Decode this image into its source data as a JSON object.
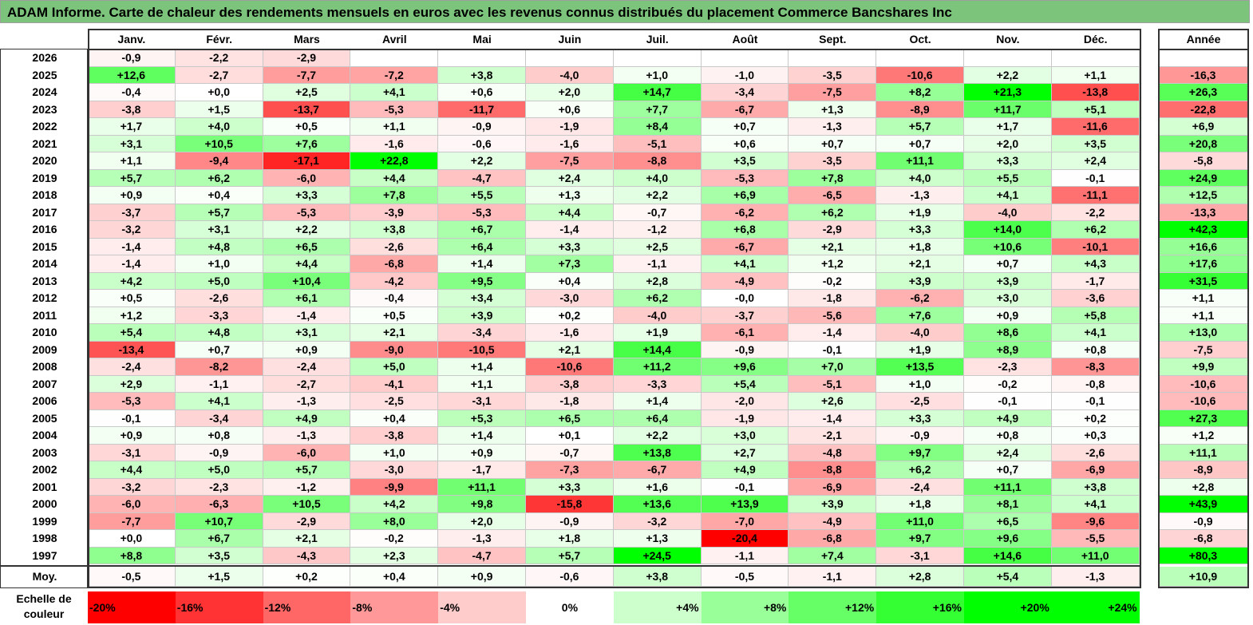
{
  "title": "ADAM Informe. Carte de chaleur des rendements mensuels en euros avec les revenus connus distribués du placement Commerce Bancshares Inc",
  "year_header": "Année",
  "avg_label": "Moy.",
  "scale_label_line1": "Echelle de",
  "scale_label_line2": "couleur",
  "chart_data": {
    "type": "heatmap",
    "title": "ADAM Informe. Carte de chaleur des rendements mensuels en euros avec les revenus connus distribués du placement Commerce Bancshares Inc",
    "months": [
      "Janv.",
      "Févr.",
      "Mars",
      "Avril",
      "Mai",
      "Juin",
      "Juil.",
      "Août",
      "Sept.",
      "Oct.",
      "Nov.",
      "Déc."
    ],
    "rows": [
      {
        "year": "2026",
        "values": [
          "-0,9",
          "-2,2",
          "-2,9",
          "",
          "",
          "",
          "",
          "",
          "",
          "",
          "",
          ""
        ],
        "annual": ""
      },
      {
        "year": "2025",
        "values": [
          "+12,6",
          "-2,7",
          "-7,7",
          "-7,2",
          "+3,8",
          "-4,0",
          "+1,0",
          "-1,0",
          "-3,5",
          "-10,6",
          "+2,2",
          "+1,1"
        ],
        "annual": "-16,3"
      },
      {
        "year": "2024",
        "values": [
          "-0,4",
          "+0,0",
          "+2,5",
          "+4,1",
          "+0,6",
          "+2,0",
          "+14,7",
          "-3,4",
          "-7,5",
          "+8,2",
          "+21,3",
          "-13,8"
        ],
        "annual": "+26,3"
      },
      {
        "year": "2023",
        "values": [
          "-3,8",
          "+1,5",
          "-13,7",
          "-5,3",
          "-11,7",
          "+0,6",
          "+7,7",
          "-6,7",
          "+1,3",
          "-8,9",
          "+11,7",
          "+5,1"
        ],
        "annual": "-22,8"
      },
      {
        "year": "2022",
        "values": [
          "+1,7",
          "+4,0",
          "+0,5",
          "+1,1",
          "-0,9",
          "-1,9",
          "+8,4",
          "+0,7",
          "-1,3",
          "+5,7",
          "+1,7",
          "-11,6"
        ],
        "annual": "+6,9"
      },
      {
        "year": "2021",
        "values": [
          "+3,1",
          "+10,5",
          "+7,6",
          "-1,6",
          "-0,6",
          "-1,6",
          "-5,1",
          "+0,6",
          "+0,7",
          "+0,7",
          "+2,0",
          "+3,5"
        ],
        "annual": "+20,8"
      },
      {
        "year": "2020",
        "values": [
          "+1,1",
          "-9,4",
          "-17,1",
          "+22,8",
          "+2,2",
          "-7,5",
          "-8,8",
          "+3,5",
          "-3,5",
          "+11,1",
          "+3,3",
          "+2,4"
        ],
        "annual": "-5,8"
      },
      {
        "year": "2019",
        "values": [
          "+5,7",
          "+6,2",
          "-6,0",
          "+4,4",
          "-4,7",
          "+2,4",
          "+4,0",
          "-5,3",
          "+7,8",
          "+4,0",
          "+5,5",
          "-0,1"
        ],
        "annual": "+24,9"
      },
      {
        "year": "2018",
        "values": [
          "+0,9",
          "+0,4",
          "+3,3",
          "+7,8",
          "+5,5",
          "+1,3",
          "+2,2",
          "+6,9",
          "-6,5",
          "-1,3",
          "+4,1",
          "-11,1"
        ],
        "annual": "+12,5"
      },
      {
        "year": "2017",
        "values": [
          "-3,7",
          "+5,7",
          "-5,3",
          "-3,9",
          "-5,3",
          "+4,4",
          "-0,7",
          "-6,2",
          "+6,2",
          "+1,9",
          "-4,0",
          "-2,2"
        ],
        "annual": "-13,3"
      },
      {
        "year": "2016",
        "values": [
          "-3,2",
          "+3,1",
          "+2,2",
          "+3,8",
          "+6,7",
          "-1,4",
          "-1,2",
          "+6,8",
          "-2,9",
          "+3,3",
          "+14,0",
          "+6,2"
        ],
        "annual": "+42,3"
      },
      {
        "year": "2015",
        "values": [
          "-1,4",
          "+4,8",
          "+6,5",
          "-2,6",
          "+6,4",
          "+3,3",
          "+2,5",
          "-6,7",
          "+2,1",
          "+1,8",
          "+10,6",
          "-10,1"
        ],
        "annual": "+16,6"
      },
      {
        "year": "2014",
        "values": [
          "-1,4",
          "+1,0",
          "+4,4",
          "-6,8",
          "+1,4",
          "+7,3",
          "-1,1",
          "+4,1",
          "+1,2",
          "+2,1",
          "+0,7",
          "+4,3"
        ],
        "annual": "+17,6"
      },
      {
        "year": "2013",
        "values": [
          "+4,2",
          "+5,0",
          "+10,4",
          "-4,2",
          "+9,5",
          "+0,4",
          "+2,8",
          "-4,9",
          "-0,2",
          "+3,9",
          "+3,9",
          "-1,7"
        ],
        "annual": "+31,5"
      },
      {
        "year": "2012",
        "values": [
          "+0,5",
          "-2,6",
          "+6,1",
          "-0,4",
          "+3,4",
          "-3,0",
          "+6,2",
          "-0,0",
          "-1,8",
          "-6,2",
          "+3,0",
          "-3,6"
        ],
        "annual": "+1,1"
      },
      {
        "year": "2011",
        "values": [
          "+1,2",
          "-3,3",
          "-1,4",
          "+0,5",
          "+3,9",
          "+0,2",
          "-4,0",
          "-3,7",
          "-5,6",
          "+7,6",
          "+0,9",
          "+5,8"
        ],
        "annual": "+1,1"
      },
      {
        "year": "2010",
        "values": [
          "+5,4",
          "+4,8",
          "+3,1",
          "+2,1",
          "-3,4",
          "-1,6",
          "+1,9",
          "-6,1",
          "-1,4",
          "-4,0",
          "+8,6",
          "+4,1"
        ],
        "annual": "+13,0"
      },
      {
        "year": "2009",
        "values": [
          "-13,4",
          "+0,7",
          "+0,9",
          "-9,0",
          "-10,5",
          "+2,1",
          "+14,4",
          "-0,9",
          "-0,1",
          "+1,9",
          "+8,9",
          "+0,8"
        ],
        "annual": "-7,5"
      },
      {
        "year": "2008",
        "values": [
          "-2,4",
          "-8,2",
          "-2,4",
          "+5,0",
          "+1,4",
          "-10,6",
          "+11,2",
          "+9,6",
          "+7,0",
          "+13,5",
          "-2,3",
          "-8,3"
        ],
        "annual": "+9,9"
      },
      {
        "year": "2007",
        "values": [
          "+2,9",
          "-1,1",
          "-2,7",
          "-4,1",
          "+1,1",
          "-3,8",
          "-3,3",
          "+5,4",
          "-5,1",
          "+1,0",
          "-0,2",
          "-0,8"
        ],
        "annual": "-10,6"
      },
      {
        "year": "2006",
        "values": [
          "-5,3",
          "+4,1",
          "-1,3",
          "-2,5",
          "-3,1",
          "-1,8",
          "+1,4",
          "-2,0",
          "+2,6",
          "-2,5",
          "-0,1",
          "-0,1"
        ],
        "annual": "-10,6"
      },
      {
        "year": "2005",
        "values": [
          "-0,1",
          "-3,4",
          "+4,9",
          "+0,4",
          "+5,3",
          "+6,5",
          "+6,4",
          "-1,9",
          "-1,4",
          "+3,3",
          "+4,9",
          "+0,2"
        ],
        "annual": "+27,3"
      },
      {
        "year": "2004",
        "values": [
          "+0,9",
          "+0,8",
          "-1,3",
          "-3,8",
          "+1,4",
          "+0,1",
          "+2,2",
          "+3,0",
          "-2,1",
          "-0,9",
          "+0,8",
          "+0,3"
        ],
        "annual": "+1,2"
      },
      {
        "year": "2003",
        "values": [
          "-3,1",
          "-0,9",
          "-6,0",
          "+1,0",
          "+0,9",
          "-0,7",
          "+13,8",
          "+2,7",
          "-4,8",
          "+9,7",
          "+2,4",
          "-2,6"
        ],
        "annual": "+11,1"
      },
      {
        "year": "2002",
        "values": [
          "+4,4",
          "+5,0",
          "+5,7",
          "-3,0",
          "-1,7",
          "-7,3",
          "-6,7",
          "+4,9",
          "-8,8",
          "+6,2",
          "+0,7",
          "-6,9"
        ],
        "annual": "-8,9"
      },
      {
        "year": "2001",
        "values": [
          "-3,2",
          "-2,3",
          "-1,2",
          "-9,9",
          "+11,1",
          "+3,3",
          "+1,6",
          "-0,1",
          "-6,9",
          "-2,4",
          "+11,1",
          "+3,8"
        ],
        "annual": "+2,8"
      },
      {
        "year": "2000",
        "values": [
          "-6,0",
          "-6,3",
          "+10,5",
          "+4,2",
          "+9,8",
          "-15,8",
          "+13,6",
          "+13,9",
          "+3,9",
          "+1,8",
          "+8,1",
          "+4,1"
        ],
        "annual": "+43,9"
      },
      {
        "year": "1999",
        "values": [
          "-7,7",
          "+10,7",
          "-2,9",
          "+8,0",
          "+2,0",
          "-0,9",
          "-3,2",
          "-7,0",
          "-4,9",
          "+11,0",
          "+6,5",
          "-9,6"
        ],
        "annual": "-0,9"
      },
      {
        "year": "1998",
        "values": [
          "+0,0",
          "+6,7",
          "+2,1",
          "-0,2",
          "-1,3",
          "+1,8",
          "+1,3",
          "-20,4",
          "-6,8",
          "+9,7",
          "+9,6",
          "-5,5"
        ],
        "annual": "-6,8"
      },
      {
        "year": "1997",
        "values": [
          "+8,8",
          "+3,5",
          "-4,3",
          "+2,3",
          "-4,7",
          "+5,7",
          "+24,5",
          "-1,1",
          "+7,4",
          "-3,1",
          "+14,6",
          "+11,0"
        ],
        "annual": "+80,3"
      }
    ],
    "average": {
      "values": [
        "-0,5",
        "+1,5",
        "+0,2",
        "+0,4",
        "+0,9",
        "-0,6",
        "+3,8",
        "-0,5",
        "-1,1",
        "+2,8",
        "+5,4",
        "-1,3"
      ],
      "annual": "+10,9"
    },
    "color_scale": [
      "-20%",
      "-16%",
      "-12%",
      "-8%",
      "-4%",
      "0%",
      "+4%",
      "+8%",
      "+12%",
      "+16%",
      "+20%",
      "+24%"
    ],
    "colors": {
      "negative_max": "#ff0000",
      "zero": "#ffffff",
      "positive_max": "#00ff00"
    }
  }
}
